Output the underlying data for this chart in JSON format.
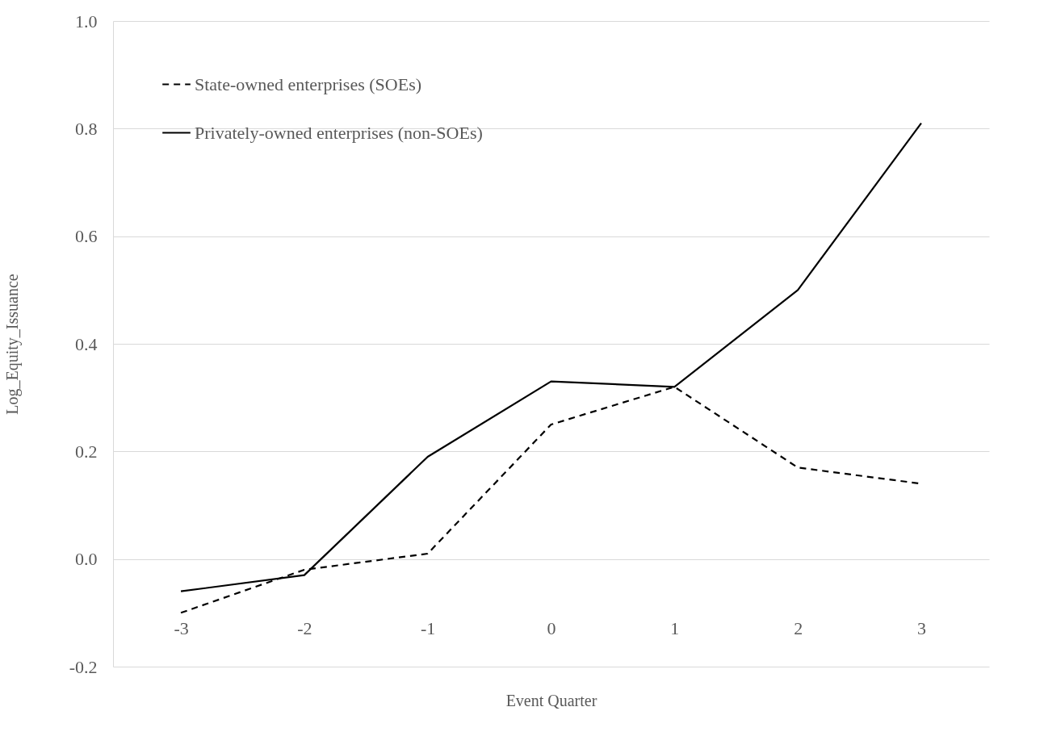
{
  "chart_data": {
    "type": "line",
    "xlabel": "Event Quarter",
    "ylabel": "Log_Equity_Issuance",
    "categories": [
      "-3",
      "-2",
      "-1",
      "0",
      "1",
      "2",
      "3"
    ],
    "series": [
      {
        "name": "State-owned enterprises (SOEs)",
        "color": "#000000",
        "line_style": "dashed",
        "values": [
          -0.1,
          -0.02,
          0.01,
          0.25,
          0.32,
          0.17,
          0.14
        ]
      },
      {
        "name": "Privately-owned enterprises (non-SOEs)",
        "color": "#000000",
        "line_style": "solid",
        "values": [
          -0.06,
          -0.03,
          0.19,
          0.33,
          0.32,
          0.5,
          0.81
        ]
      }
    ],
    "ylim": [
      -0.2,
      1.0
    ],
    "yticks": [
      -0.2,
      {
        "value": 0,
        "label": "0.0"
      },
      0.2,
      0.4,
      0.6,
      0.8,
      {
        "value": 1,
        "label": "1.0"
      }
    ],
    "grid": "y",
    "legend": "top left",
    "marker": "none"
  }
}
